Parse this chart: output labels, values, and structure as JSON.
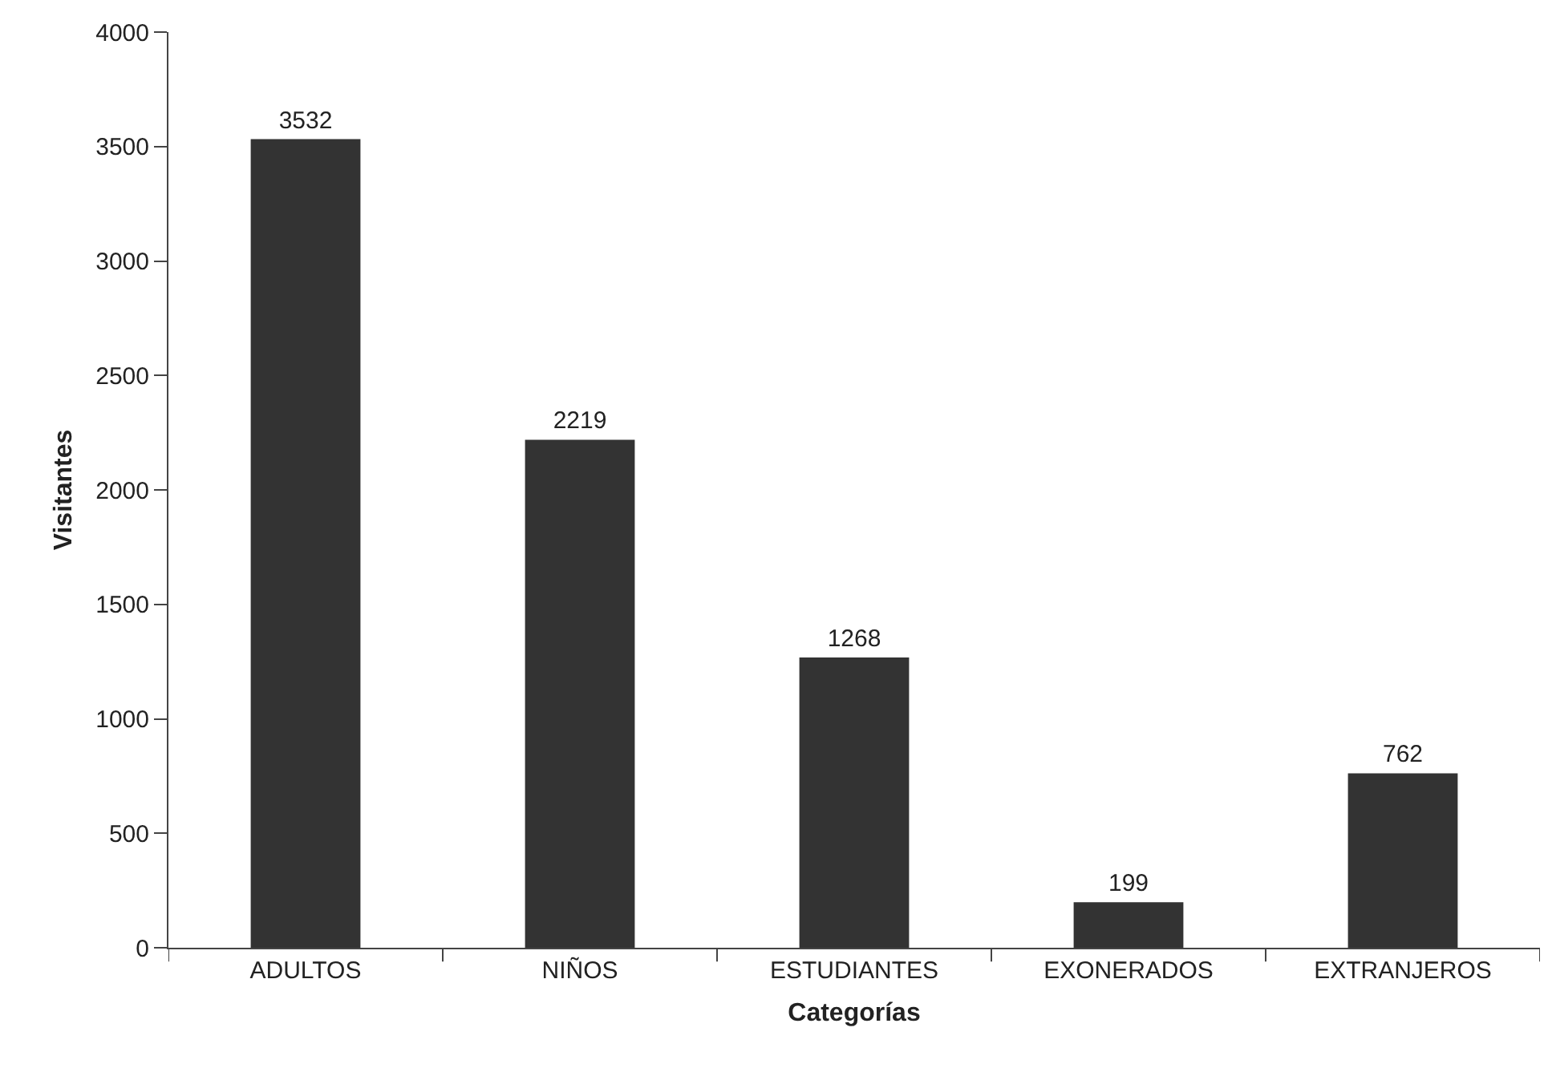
{
  "chart_data": {
    "type": "bar",
    "xlabel": "Categorías",
    "ylabel": "Visitantes",
    "categories": [
      "ADULTOS",
      "NIÑOS",
      "ESTUDIANTES",
      "EXONERADOS",
      "EXTRANJEROS"
    ],
    "values": [
      3532,
      2219,
      1268,
      199,
      762
    ],
    "color": "#333333",
    "ylim": [
      0,
      4000
    ],
    "yticks": [
      0,
      500,
      1000,
      1500,
      2000,
      2500,
      3000,
      3500,
      4000
    ],
    "grid": false,
    "data_labels": true
  }
}
